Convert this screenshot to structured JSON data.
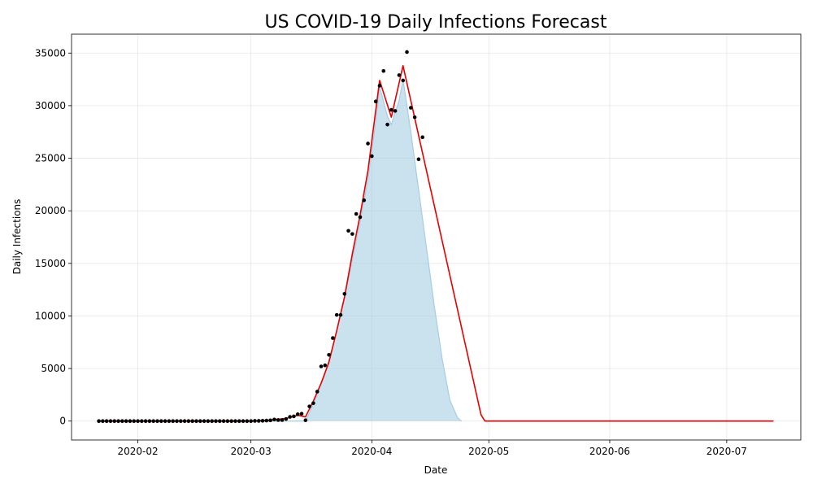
{
  "chart_data": {
    "type": "line",
    "title": "US COVID-19 Daily Infections Forecast",
    "xlabel": "Date",
    "ylabel": "Daily Infections",
    "xlim": [
      "2020-01-15",
      "2020-07-20"
    ],
    "ylim": [
      -1800,
      36800
    ],
    "grid": true,
    "x_ticks": [
      "2020-02-01",
      "2020-03-01",
      "2020-04-01",
      "2020-05-01",
      "2020-06-01",
      "2020-07-01"
    ],
    "x_tick_labels": [
      "2020-02",
      "2020-03",
      "2020-04",
      "2020-05",
      "2020-06",
      "2020-07"
    ],
    "y_ticks": [
      0,
      5000,
      10000,
      15000,
      20000,
      25000,
      30000,
      35000
    ],
    "y_tick_labels": [
      "0",
      "5000",
      "10000",
      "15000",
      "20000",
      "25000",
      "30000",
      "35000"
    ],
    "colors": {
      "observed": "#000000",
      "forecast": "#e60000",
      "band": "#a6cde3"
    },
    "observed": [
      [
        "2020-01-22",
        0
      ],
      [
        "2020-01-23",
        0
      ],
      [
        "2020-01-24",
        0
      ],
      [
        "2020-01-25",
        0
      ],
      [
        "2020-01-26",
        0
      ],
      [
        "2020-01-27",
        0
      ],
      [
        "2020-01-28",
        0
      ],
      [
        "2020-01-29",
        0
      ],
      [
        "2020-01-30",
        0
      ],
      [
        "2020-01-31",
        0
      ],
      [
        "2020-02-01",
        0
      ],
      [
        "2020-02-02",
        0
      ],
      [
        "2020-02-03",
        0
      ],
      [
        "2020-02-04",
        0
      ],
      [
        "2020-02-05",
        0
      ],
      [
        "2020-02-06",
        0
      ],
      [
        "2020-02-07",
        0
      ],
      [
        "2020-02-08",
        0
      ],
      [
        "2020-02-09",
        0
      ],
      [
        "2020-02-10",
        0
      ],
      [
        "2020-02-11",
        0
      ],
      [
        "2020-02-12",
        0
      ],
      [
        "2020-02-13",
        0
      ],
      [
        "2020-02-14",
        0
      ],
      [
        "2020-02-15",
        0
      ],
      [
        "2020-02-16",
        0
      ],
      [
        "2020-02-17",
        0
      ],
      [
        "2020-02-18",
        0
      ],
      [
        "2020-02-19",
        0
      ],
      [
        "2020-02-20",
        0
      ],
      [
        "2020-02-21",
        0
      ],
      [
        "2020-02-22",
        0
      ],
      [
        "2020-02-23",
        0
      ],
      [
        "2020-02-24",
        0
      ],
      [
        "2020-02-25",
        0
      ],
      [
        "2020-02-26",
        0
      ],
      [
        "2020-02-27",
        0
      ],
      [
        "2020-02-28",
        0
      ],
      [
        "2020-02-29",
        0
      ],
      [
        "2020-03-01",
        0
      ],
      [
        "2020-03-02",
        20
      ],
      [
        "2020-03-03",
        20
      ],
      [
        "2020-03-04",
        30
      ],
      [
        "2020-03-05",
        50
      ],
      [
        "2020-03-06",
        70
      ],
      [
        "2020-03-07",
        150
      ],
      [
        "2020-03-08",
        100
      ],
      [
        "2020-03-09",
        100
      ],
      [
        "2020-03-10",
        200
      ],
      [
        "2020-03-11",
        400
      ],
      [
        "2020-03-12",
        450
      ],
      [
        "2020-03-13",
        650
      ],
      [
        "2020-03-14",
        700
      ],
      [
        "2020-03-15",
        80
      ],
      [
        "2020-03-16",
        1400
      ],
      [
        "2020-03-17",
        1700
      ],
      [
        "2020-03-18",
        2800
      ],
      [
        "2020-03-19",
        5200
      ],
      [
        "2020-03-20",
        5300
      ],
      [
        "2020-03-21",
        6300
      ],
      [
        "2020-03-22",
        7900
      ],
      [
        "2020-03-23",
        10100
      ],
      [
        "2020-03-24",
        10100
      ],
      [
        "2020-03-25",
        12100
      ],
      [
        "2020-03-26",
        18100
      ],
      [
        "2020-03-27",
        17800
      ],
      [
        "2020-03-28",
        19700
      ],
      [
        "2020-03-29",
        19400
      ],
      [
        "2020-03-30",
        21000
      ],
      [
        "2020-03-31",
        26400
      ],
      [
        "2020-04-01",
        25200
      ],
      [
        "2020-04-02",
        30400
      ],
      [
        "2020-04-03",
        31900
      ],
      [
        "2020-04-04",
        33300
      ],
      [
        "2020-04-05",
        28200
      ],
      [
        "2020-04-06",
        29600
      ],
      [
        "2020-04-07",
        29500
      ],
      [
        "2020-04-08",
        32900
      ],
      [
        "2020-04-09",
        32400
      ],
      [
        "2020-04-10",
        35100
      ],
      [
        "2020-04-11",
        29800
      ],
      [
        "2020-04-12",
        28900
      ],
      [
        "2020-04-13",
        24900
      ],
      [
        "2020-04-14",
        27000
      ]
    ],
    "forecast": [
      [
        "2020-01-22",
        0
      ],
      [
        "2020-03-01",
        0
      ],
      [
        "2020-03-06",
        100
      ],
      [
        "2020-03-10",
        250
      ],
      [
        "2020-03-13",
        550
      ],
      [
        "2020-03-15",
        400
      ],
      [
        "2020-03-17",
        1900
      ],
      [
        "2020-03-19",
        3600
      ],
      [
        "2020-03-21",
        5600
      ],
      [
        "2020-03-23",
        8600
      ],
      [
        "2020-03-25",
        11800
      ],
      [
        "2020-03-27",
        15900
      ],
      [
        "2020-03-29",
        19600
      ],
      [
        "2020-03-31",
        23800
      ],
      [
        "2020-04-03",
        32400
      ],
      [
        "2020-04-06",
        28900
      ],
      [
        "2020-04-09",
        33800
      ],
      [
        "2020-04-29",
        600
      ],
      [
        "2020-04-30",
        0
      ],
      [
        "2020-07-13",
        0
      ]
    ],
    "band": [
      [
        "2020-01-22",
        0
      ],
      [
        "2020-03-15",
        0
      ],
      [
        "2020-03-17",
        1600
      ],
      [
        "2020-03-20",
        4500
      ],
      [
        "2020-03-23",
        8500
      ],
      [
        "2020-03-26",
        13500
      ],
      [
        "2020-03-29",
        19000
      ],
      [
        "2020-03-31",
        23000
      ],
      [
        "2020-04-02",
        28500
      ],
      [
        "2020-04-03",
        31800
      ],
      [
        "2020-04-05",
        29000
      ],
      [
        "2020-04-06",
        28200
      ],
      [
        "2020-04-08",
        30500
      ],
      [
        "2020-04-09",
        32500
      ],
      [
        "2020-04-11",
        27500
      ],
      [
        "2020-04-13",
        22000
      ],
      [
        "2020-04-15",
        16500
      ],
      [
        "2020-04-17",
        11000
      ],
      [
        "2020-04-19",
        6000
      ],
      [
        "2020-04-21",
        2000
      ],
      [
        "2020-04-23",
        300
      ],
      [
        "2020-04-24",
        0
      ]
    ]
  }
}
